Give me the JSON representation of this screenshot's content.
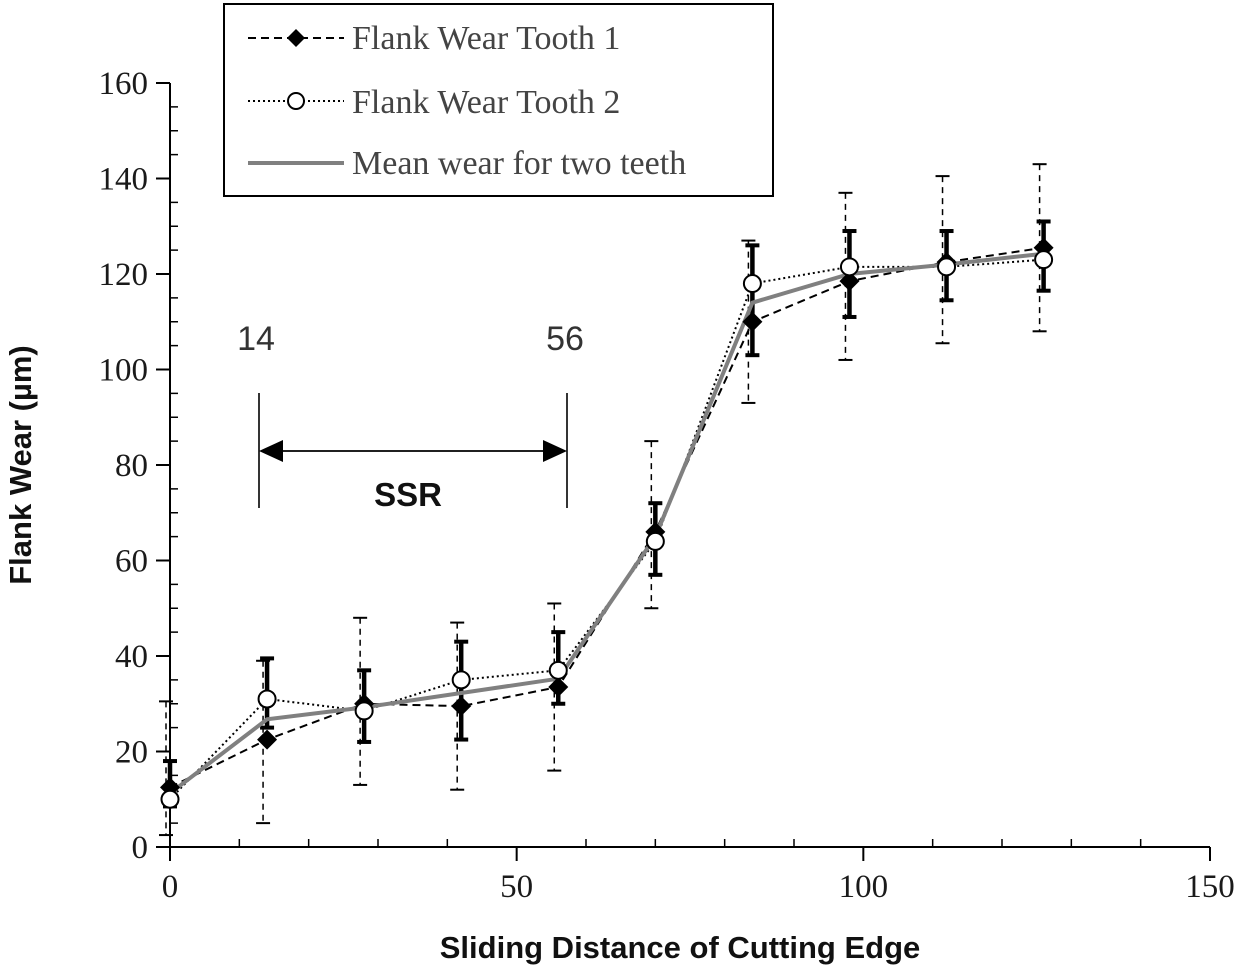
{
  "chart_data": {
    "type": "line",
    "xlabel": "Sliding Distance of Cutting Edge",
    "ylabel": "Flank Wear (µm)",
    "xlim": [
      0,
      150
    ],
    "ylim": [
      0,
      160
    ],
    "x_ticks": [
      0,
      50,
      100,
      150
    ],
    "x_tick_labels": [
      "0",
      "50",
      "100",
      "150"
    ],
    "y_ticks": [
      0,
      20,
      40,
      60,
      80,
      100,
      120,
      140,
      160
    ],
    "y_tick_labels": [
      "0",
      "20",
      "40",
      "60",
      "80",
      "100",
      "120",
      "140",
      "160"
    ],
    "grid": false,
    "legend_position": "top-left",
    "x": [
      0,
      14,
      28,
      42,
      56,
      70,
      84,
      98,
      112,
      126
    ],
    "series": [
      {
        "name": "Flank Wear Tooth 1",
        "style": "dashed-diamond",
        "color": "#000000",
        "values": [
          12.5,
          22.5,
          30,
          29.5,
          33.5,
          66,
          110,
          118.5,
          122.5,
          125.5
        ],
        "err_low": [
          2.5,
          5,
          13,
          12,
          16,
          50,
          93,
          102,
          105.5,
          108
        ],
        "err_high": [
          30.5,
          39,
          48,
          47,
          51,
          85,
          127,
          137,
          140.5,
          143
        ]
      },
      {
        "name": "Flank Wear Tooth 2",
        "style": "dotted-circle",
        "color": "#000000",
        "values": [
          10,
          31,
          28.5,
          35,
          37,
          64,
          118,
          121.5,
          121.5,
          123
        ],
        "err_low": [
          10,
          31,
          28.5,
          35,
          37,
          64,
          118,
          121.5,
          121.5,
          123
        ],
        "err_high": [
          10,
          31,
          28.5,
          35,
          37,
          64,
          118,
          121.5,
          121.5,
          123
        ]
      },
      {
        "name": "Mean wear for two teeth",
        "style": "solid",
        "color": "#808080",
        "values": [
          11.25,
          26.75,
          29.25,
          32.25,
          35.25,
          65,
          114,
          120,
          122,
          124.25
        ],
        "err_low": [
          8.5,
          25,
          22,
          22.5,
          30,
          57,
          103,
          111,
          114.5,
          116.5
        ],
        "err_high": [
          18,
          39.5,
          37,
          43,
          45,
          72,
          126,
          129,
          129,
          131
        ]
      }
    ],
    "annotations": {
      "left_marker": {
        "label": "14",
        "x": 14
      },
      "right_marker": {
        "label": "56",
        "x": 56
      },
      "range_label": "SSR"
    }
  }
}
